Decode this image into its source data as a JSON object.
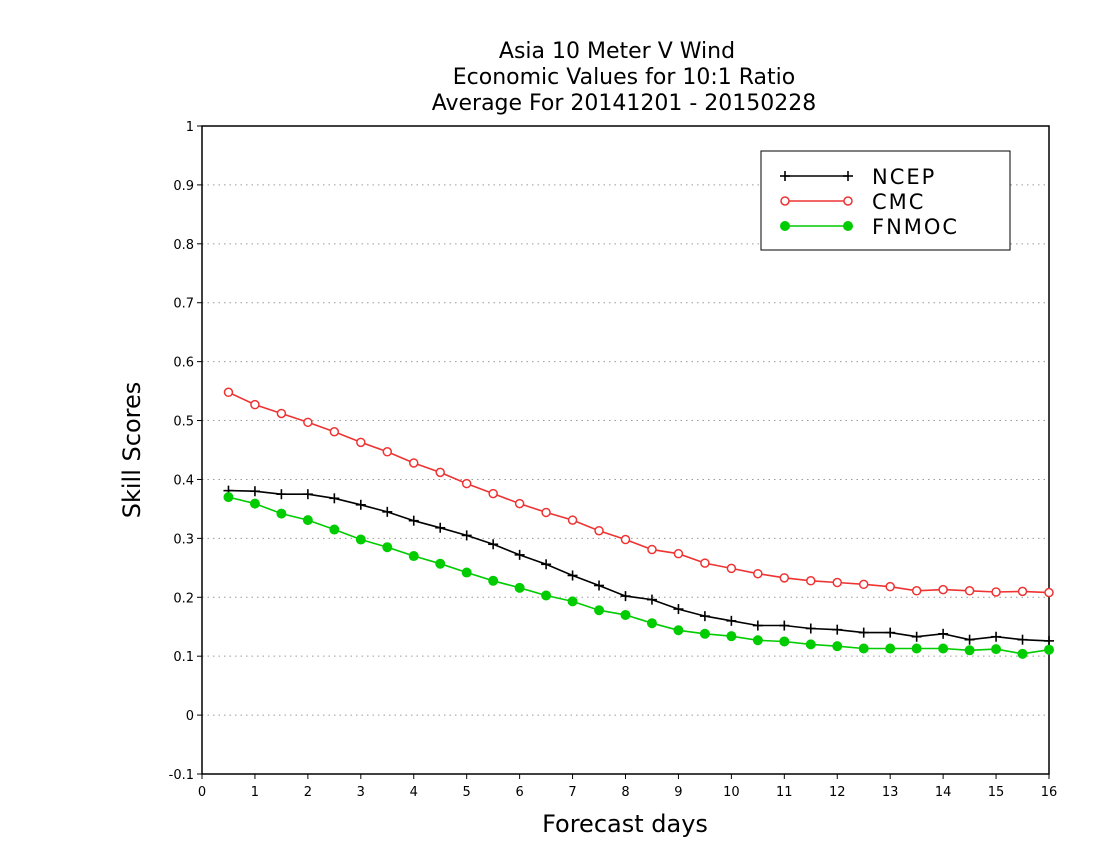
{
  "chart_data": {
    "type": "line",
    "title_lines": [
      "Asia 10 Meter V Wind",
      "Economic Values for 10:1 Ratio",
      "Average For 20141201 - 20150228"
    ],
    "xlabel": "Forecast days",
    "ylabel": "Skill Scores",
    "xlim": [
      0,
      16
    ],
    "ylim": [
      -0.1,
      1
    ],
    "xticks": [
      "0",
      "1",
      "2",
      "3",
      "4",
      "5",
      "6",
      "7",
      "8",
      "9",
      "10",
      "11",
      "12",
      "13",
      "14",
      "15",
      "16"
    ],
    "yticks": [
      "-0.1",
      "0",
      "0.1",
      "0.2",
      "0.3",
      "0.4",
      "0.5",
      "0.6",
      "0.7",
      "0.8",
      "0.9",
      "1"
    ],
    "ytick_values": [
      -0.1,
      0,
      0.1,
      0.2,
      0.3,
      0.4,
      0.5,
      0.6,
      0.7,
      0.8,
      0.9,
      1
    ],
    "grid": "horizontal dotted",
    "legend_position": "top-right",
    "x": [
      0.5,
      1,
      1.5,
      2,
      2.5,
      3,
      3.5,
      4,
      4.5,
      5,
      5.5,
      6,
      6.5,
      7,
      7.5,
      8,
      8.5,
      9,
      9.5,
      10,
      10.5,
      11,
      11.5,
      12,
      12.5,
      13,
      13.5,
      14,
      14.5,
      15,
      15.5,
      16
    ],
    "series": [
      {
        "name": "NCEP",
        "color": "#000000",
        "marker": "plus",
        "values": [
          0.381,
          0.38,
          0.375,
          0.375,
          0.368,
          0.357,
          0.345,
          0.33,
          0.318,
          0.305,
          0.29,
          0.272,
          0.256,
          0.237,
          0.22,
          0.202,
          0.196,
          0.18,
          0.168,
          0.16,
          0.152,
          0.152,
          0.147,
          0.145,
          0.14,
          0.14,
          0.133,
          0.138,
          0.128,
          0.133,
          0.128,
          0.126
        ]
      },
      {
        "name": "CMC",
        "color": "#ee3333",
        "marker": "open-circle",
        "values": [
          0.548,
          0.527,
          0.512,
          0.497,
          0.481,
          0.463,
          0.447,
          0.428,
          0.412,
          0.393,
          0.376,
          0.359,
          0.344,
          0.331,
          0.313,
          0.298,
          0.281,
          0.274,
          0.258,
          0.249,
          0.24,
          0.233,
          0.228,
          0.225,
          0.222,
          0.218,
          0.211,
          0.213,
          0.211,
          0.209,
          0.21,
          0.208
        ]
      },
      {
        "name": "FNMOC",
        "color": "#00cc00",
        "marker": "filled-circle",
        "values": [
          0.37,
          0.359,
          0.342,
          0.331,
          0.315,
          0.298,
          0.285,
          0.27,
          0.257,
          0.242,
          0.228,
          0.216,
          0.203,
          0.193,
          0.178,
          0.17,
          0.156,
          0.144,
          0.138,
          0.134,
          0.127,
          0.125,
          0.12,
          0.117,
          0.113,
          0.113,
          0.113,
          0.113,
          0.11,
          0.112,
          0.104,
          0.111
        ]
      }
    ]
  }
}
